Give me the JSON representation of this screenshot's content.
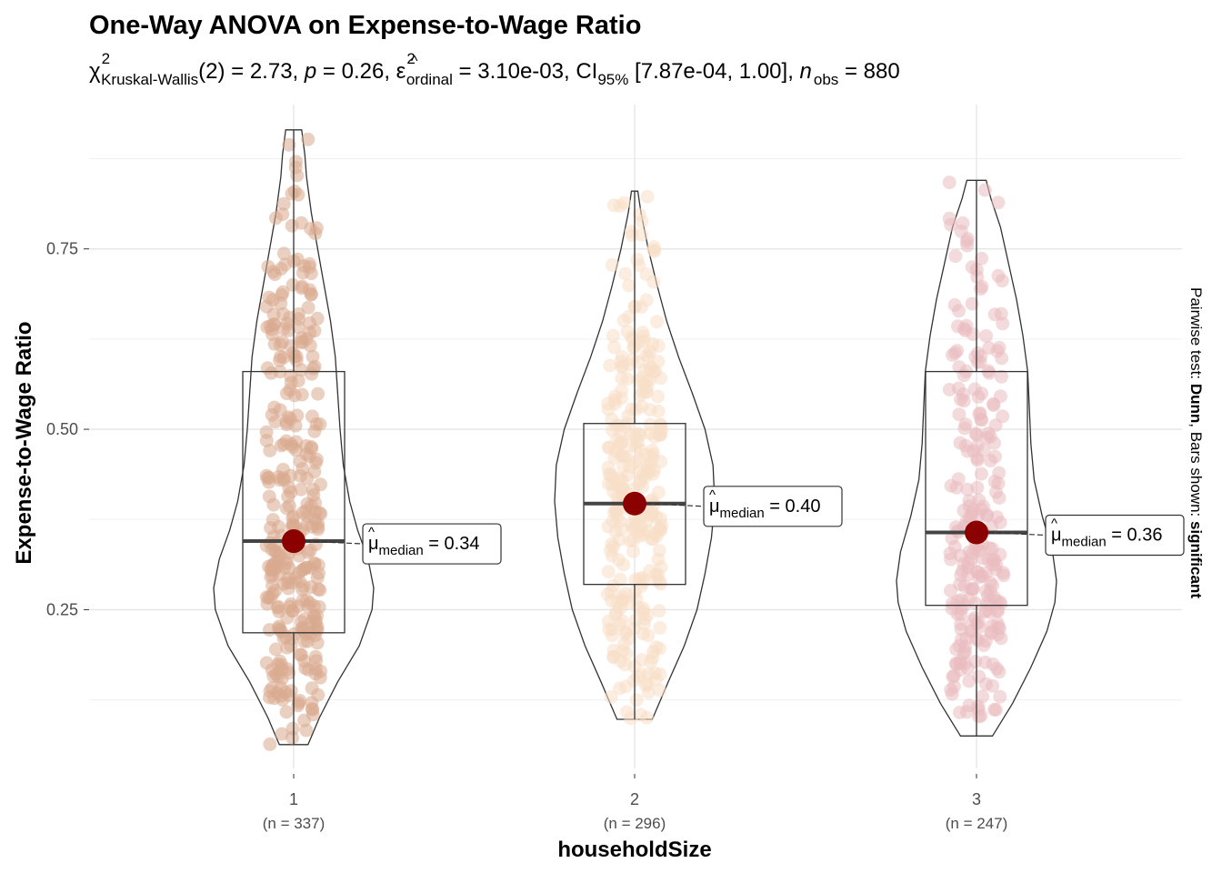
{
  "chart_data": {
    "type": "violin-box",
    "title": "One-Way ANOVA on Expense-to-Wage Ratio",
    "subtitle": {
      "stat_symbol": "χ",
      "stat_sup": "2",
      "stat_sub": "Kruskal-Wallis",
      "stat_df": "(2)",
      "stat_value": "2.73",
      "p_symbol": "p",
      "p_value": "0.26",
      "effect_symbol": "ε",
      "effect_sup": "2",
      "effect_sub": "ordinal",
      "effect_value": "3.10e-03",
      "ci_label": "CI",
      "ci_sub": "95%",
      "ci_value": "[7.87e-04, 1.00]",
      "n_symbol": "n",
      "n_sub": "obs",
      "n_value": "880"
    },
    "xlabel": "householdSize",
    "ylabel": "Expense-to-Wage Ratio",
    "ylim": [
      0.03,
      0.95
    ],
    "yticks": [
      0.25,
      0.5,
      0.75
    ],
    "ytick_labels": [
      "0.25",
      "0.50",
      "0.75"
    ],
    "minor_gridlines": [
      0.125,
      0.375,
      0.625,
      0.875
    ],
    "caption": {
      "prefix": "Pairwise test: ",
      "test": "Dunn",
      "mid": ", Bars shown: ",
      "bars": "significant"
    },
    "median_label": {
      "symbol": "μ",
      "sub": "median",
      "eq": " = "
    },
    "groups": [
      {
        "category": "1",
        "n_label": "(n = 337)",
        "n": 337,
        "color": "#D9A98E",
        "min": 0.063,
        "q1": 0.218,
        "median": 0.345,
        "q3": 0.58,
        "max": 0.915,
        "median_label": "0.34",
        "violin_profile": [
          [
            0.063,
            0.18
          ],
          [
            0.1,
            0.32
          ],
          [
            0.15,
            0.55
          ],
          [
            0.2,
            0.82
          ],
          [
            0.25,
            0.98
          ],
          [
            0.28,
            1.0
          ],
          [
            0.32,
            0.93
          ],
          [
            0.36,
            0.8
          ],
          [
            0.4,
            0.7
          ],
          [
            0.45,
            0.62
          ],
          [
            0.5,
            0.58
          ],
          [
            0.55,
            0.55
          ],
          [
            0.6,
            0.52
          ],
          [
            0.65,
            0.46
          ],
          [
            0.7,
            0.38
          ],
          [
            0.75,
            0.3
          ],
          [
            0.8,
            0.22
          ],
          [
            0.85,
            0.16
          ],
          [
            0.88,
            0.14
          ],
          [
            0.915,
            0.1
          ]
        ]
      },
      {
        "category": "2",
        "n_label": "(n = 296)",
        "n": 296,
        "color": "#F8DFC6",
        "min": 0.098,
        "q1": 0.285,
        "median": 0.397,
        "q3": 0.508,
        "max": 0.83,
        "median_label": "0.40",
        "violin_profile": [
          [
            0.098,
            0.22
          ],
          [
            0.15,
            0.42
          ],
          [
            0.2,
            0.62
          ],
          [
            0.25,
            0.78
          ],
          [
            0.3,
            0.88
          ],
          [
            0.35,
            0.96
          ],
          [
            0.4,
            1.0
          ],
          [
            0.45,
            0.98
          ],
          [
            0.5,
            0.88
          ],
          [
            0.55,
            0.72
          ],
          [
            0.6,
            0.55
          ],
          [
            0.65,
            0.4
          ],
          [
            0.7,
            0.28
          ],
          [
            0.75,
            0.17
          ],
          [
            0.8,
            0.08
          ],
          [
            0.83,
            0.04
          ]
        ]
      },
      {
        "category": "3",
        "n_label": "(n = 247)",
        "n": 247,
        "color": "#EABCC0",
        "min": 0.075,
        "q1": 0.256,
        "median": 0.357,
        "q3": 0.58,
        "max": 0.845,
        "median_label": "0.36",
        "violin_profile": [
          [
            0.075,
            0.2
          ],
          [
            0.12,
            0.45
          ],
          [
            0.17,
            0.68
          ],
          [
            0.22,
            0.88
          ],
          [
            0.26,
            0.98
          ],
          [
            0.29,
            1.0
          ],
          [
            0.33,
            0.95
          ],
          [
            0.38,
            0.82
          ],
          [
            0.43,
            0.72
          ],
          [
            0.48,
            0.68
          ],
          [
            0.53,
            0.66
          ],
          [
            0.58,
            0.64
          ],
          [
            0.63,
            0.58
          ],
          [
            0.68,
            0.5
          ],
          [
            0.73,
            0.4
          ],
          [
            0.78,
            0.3
          ],
          [
            0.82,
            0.18
          ],
          [
            0.845,
            0.12
          ]
        ]
      }
    ]
  }
}
